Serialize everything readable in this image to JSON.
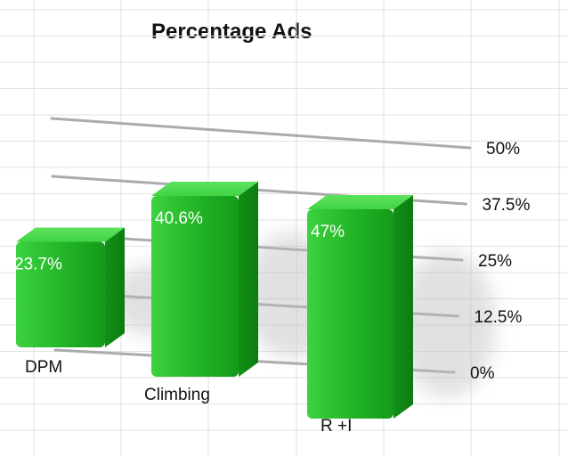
{
  "chart_data": {
    "type": "bar",
    "title": "Percentage Ads",
    "categories": [
      "DPM",
      "Climbing",
      "R +I"
    ],
    "values": [
      23.7,
      40.6,
      47
    ],
    "value_labels": [
      "23.7%",
      "40.6%",
      "47%"
    ],
    "y_ticks": [
      0,
      12.5,
      25,
      37.5,
      50
    ],
    "y_tick_labels": [
      "0%",
      "12.5%",
      "25%",
      "37.5%",
      "50%"
    ],
    "ylim": [
      0,
      50
    ],
    "xlabel": "",
    "ylabel": "",
    "grid": true,
    "bar_color": "#22b22a",
    "style": "3d"
  }
}
